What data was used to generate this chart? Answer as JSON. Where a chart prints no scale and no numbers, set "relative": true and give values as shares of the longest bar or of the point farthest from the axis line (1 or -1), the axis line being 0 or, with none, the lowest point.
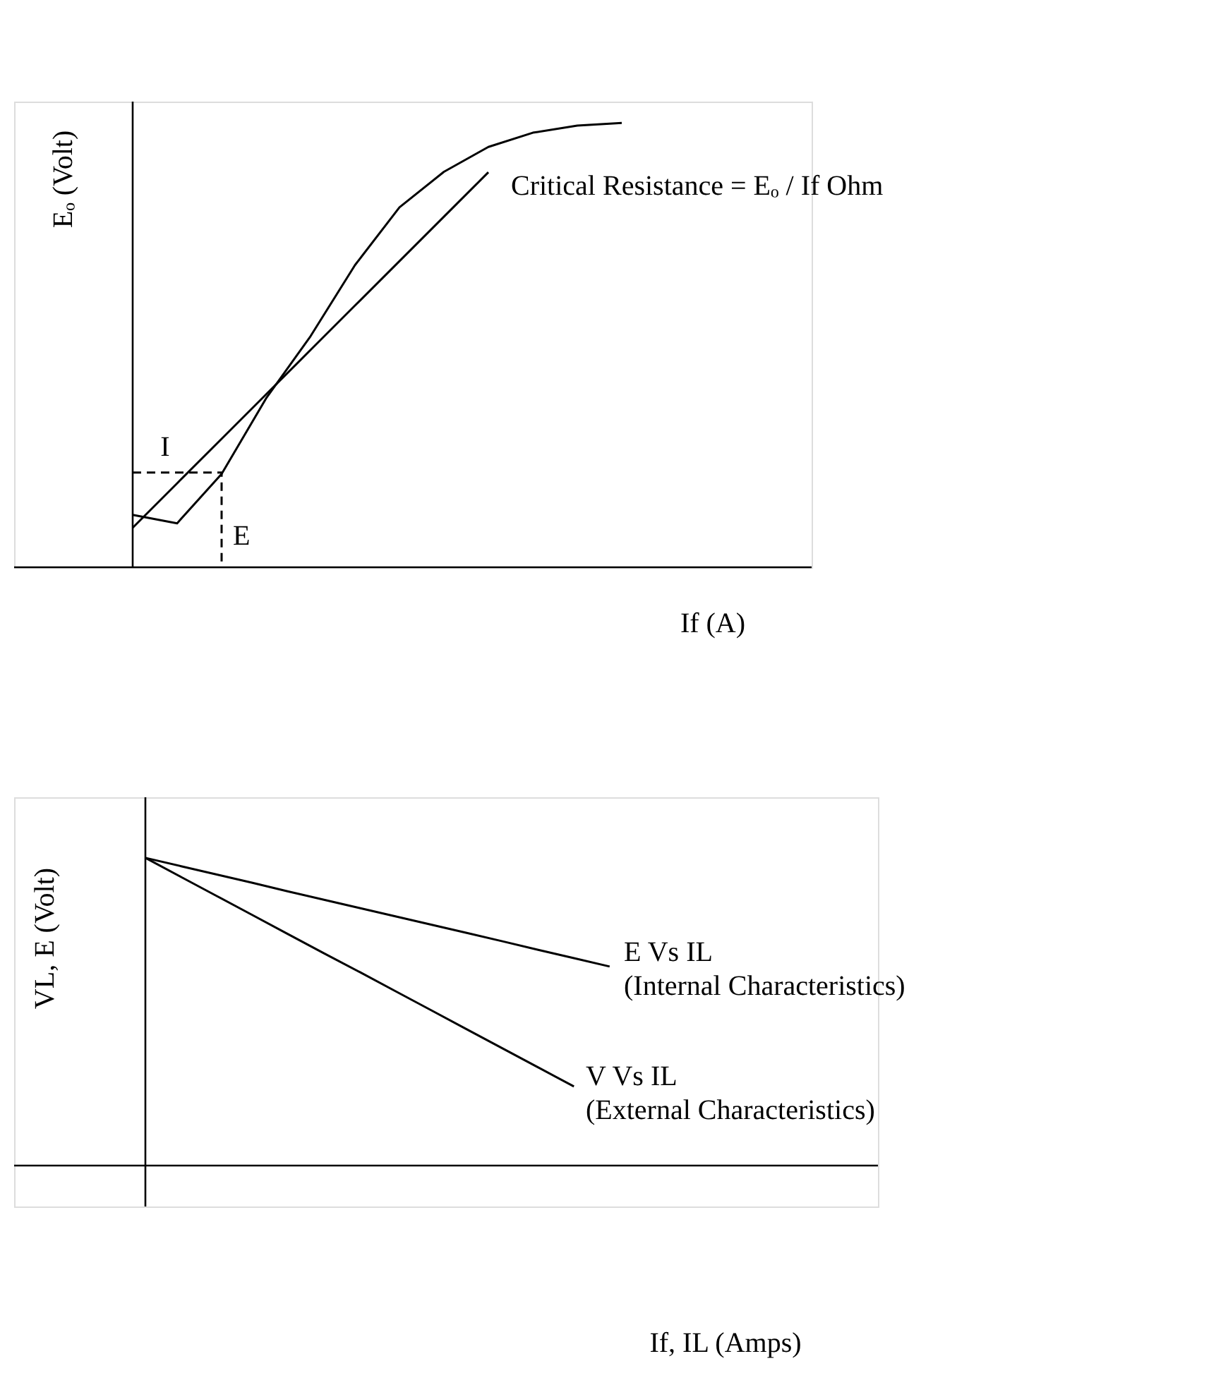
{
  "chart_data": [
    {
      "type": "line",
      "relative": true,
      "ylabel": "Eₒ (Volt)",
      "xlabel": "If (A)",
      "ylim": [
        0,
        1.048
      ],
      "marker": "none",
      "categories": [
        null,
        null,
        null,
        null,
        null,
        null,
        null,
        null,
        null,
        null,
        null,
        null
      ],
      "series": [
        {
          "color": "#000000",
          "line_style": "solid",
          "values": [
            0.118,
            0.099,
            0.21,
            0.38,
            0.52,
            0.68,
            0.81,
            0.89,
            0.946,
            0.978,
            0.994,
            1
          ]
        },
        {
          "color": "#000000",
          "line_style": "solid",
          "values": [
            0.089,
            0.189,
            0.289,
            0.389,
            0.489,
            0.589,
            0.689,
            0.789,
            0.889,
            null,
            null,
            null
          ]
        },
        {
          "type": "step",
          "color": "#000000",
          "line_style": "dashed",
          "values": [
            0.213,
            0.213,
            0,
            null,
            null,
            null,
            null,
            null,
            null,
            null,
            null,
            null
          ]
        }
      ],
      "annotations": [
        "I",
        "E",
        "Critical Resistance = Eₒ / If Ohm"
      ]
    },
    {
      "type": "line",
      "relative": true,
      "ylabel": "VL, E (Volt)",
      "xlabel": "If, IL (Amps)",
      "ylim": [
        -0.133,
        1.197
      ],
      "marker": "none",
      "categories": [
        null,
        null,
        null,
        null,
        null,
        null,
        null,
        null,
        null,
        null,
        null,
        null,
        null,
        null
      ],
      "series": [
        {
          "color": "#000000",
          "line_style": "solid",
          "values": [
            1,
            0.973,
            0.946,
            0.919,
            0.891,
            0.864,
            0.837,
            0.81,
            0.783,
            0.756,
            0.729,
            0.701,
            0.674,
            0.647
          ]
        },
        {
          "color": "#000000",
          "line_style": "solid",
          "values": [
            1,
            0.938,
            0.876,
            0.814,
            0.752,
            0.69,
            0.629,
            0.567,
            0.505,
            0.443,
            0.381,
            0.319,
            0.257,
            null
          ]
        }
      ],
      "annotations": [
        "E Vs IL\n(Internal Characteristics)",
        "V Vs IL\n(External Characteristics)"
      ]
    }
  ]
}
